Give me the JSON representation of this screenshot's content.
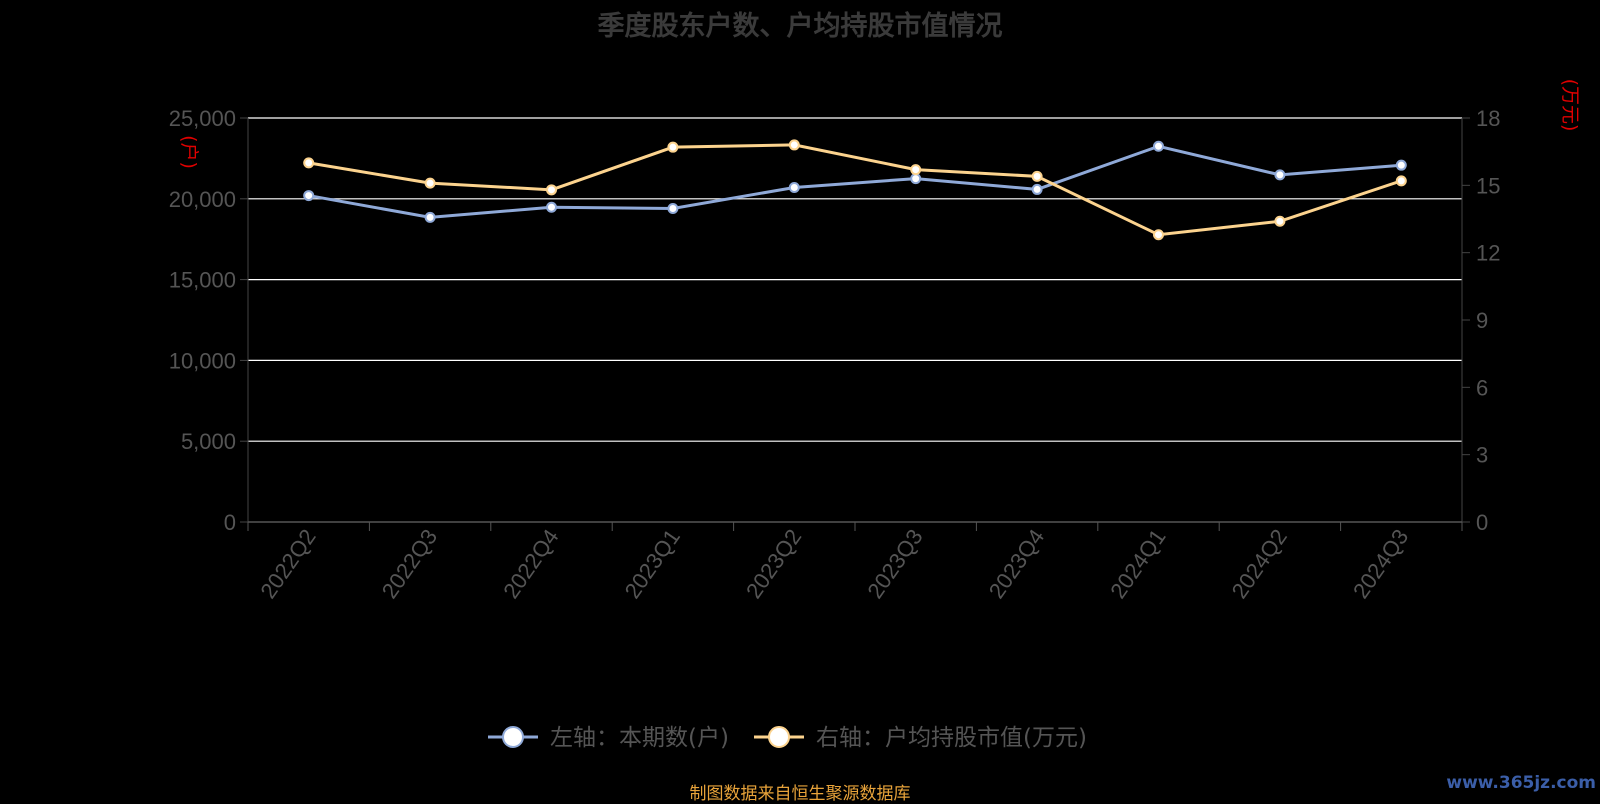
{
  "chart_data": {
    "type": "line",
    "title": "季度股东户数、户均持股市值情况",
    "categories": [
      "2022Q2",
      "2022Q3",
      "2022Q4",
      "2023Q1",
      "2023Q2",
      "2023Q3",
      "2023Q4",
      "2024Q1",
      "2024Q2",
      "2024Q3"
    ],
    "left_axis": {
      "unit_label": "(户)",
      "ylim": [
        0,
        25000
      ],
      "ticks": [
        "0",
        "5,000",
        "10,000",
        "15,000",
        "20,000",
        "25,000"
      ]
    },
    "right_axis": {
      "unit_label": "(万元)",
      "ylim": [
        0,
        18
      ],
      "ticks": [
        "0",
        "3",
        "6",
        "9",
        "12",
        "15",
        "18"
      ]
    },
    "series": [
      {
        "name": "左轴：本期数(户)",
        "axis": "left",
        "color": "#8fa9d8",
        "values": [
          20200,
          18850,
          19480,
          19400,
          20700,
          21250,
          20580,
          23250,
          21480,
          22080
        ]
      },
      {
        "name": "右轴：户均持股市值(万元)",
        "axis": "right",
        "color": "#fcd38e",
        "values": [
          16.0,
          15.1,
          14.8,
          16.7,
          16.8,
          15.7,
          15.4,
          12.8,
          13.4,
          15.2
        ]
      }
    ],
    "grid": true,
    "legend": "bottom-center"
  },
  "colors": {
    "axis_unit": "#e00000",
    "tick_text": "#555555",
    "grid": "#ffffff"
  },
  "source_text": "制图数据来自恒生聚源数据库",
  "watermark": "www.365jz.com"
}
